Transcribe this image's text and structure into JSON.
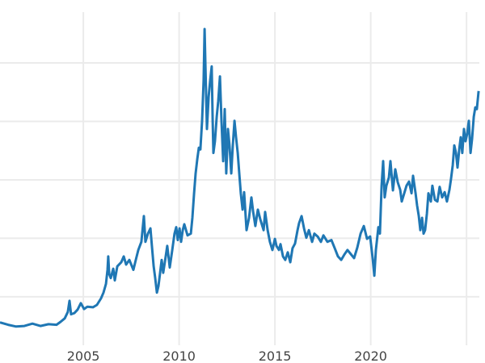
{
  "chart_data": {
    "type": "line",
    "title": "",
    "xlabel": "",
    "ylabel": "",
    "xlim": [
      2000.65,
      2025.67
    ],
    "ylim": [
      1.7,
      58.7
    ],
    "x_ticks": [
      2005,
      2010,
      2015,
      2020,
      2025
    ],
    "x_tick_labels": [
      "2005",
      "2010",
      "2015",
      "2020",
      ""
    ],
    "y_gridlines": [
      10,
      20,
      30,
      40,
      50
    ],
    "grid": true,
    "line_color": "#1f77b4",
    "grid_color": "#ebebeb",
    "series": [
      {
        "x": [
          2000.65,
          2001.07,
          2001.49,
          2001.92,
          2002.34,
          2002.76,
          2003.18,
          2003.6,
          2003.81,
          2004.03,
          2004.19,
          2004.28,
          2004.36,
          2004.53,
          2004.7,
          2004.87,
          2005.04,
          2005.21,
          2005.5,
          2005.71,
          2005.92,
          2006.05,
          2006.18,
          2006.26,
          2006.3,
          2006.35,
          2006.43,
          2006.56,
          2006.64,
          2006.77,
          2006.98,
          2007.11,
          2007.23,
          2007.4,
          2007.61,
          2007.74,
          2007.87,
          2008.03,
          2008.16,
          2008.24,
          2008.37,
          2008.5,
          2008.58,
          2008.67,
          2008.75,
          2008.84,
          2008.92,
          2009.0,
          2009.09,
          2009.17,
          2009.3,
          2009.38,
          2009.51,
          2009.64,
          2009.76,
          2009.85,
          2009.93,
          2010.02,
          2010.1,
          2010.19,
          2010.27,
          2010.44,
          2010.61,
          2010.69,
          2010.78,
          2010.86,
          2010.95,
          2011.03,
          2011.11,
          2011.2,
          2011.28,
          2011.33,
          2011.37,
          2011.45,
          2011.54,
          2011.62,
          2011.7,
          2011.75,
          2011.79,
          2011.87,
          2011.96,
          2012.04,
          2012.13,
          2012.21,
          2012.3,
          2012.38,
          2012.46,
          2012.55,
          2012.63,
          2012.72,
          2012.8,
          2012.89,
          2012.97,
          2013.06,
          2013.14,
          2013.22,
          2013.31,
          2013.39,
          2013.52,
          2013.65,
          2013.77,
          2013.86,
          2013.98,
          2014.11,
          2014.24,
          2014.41,
          2014.49,
          2014.62,
          2014.74,
          2014.87,
          2015.0,
          2015.08,
          2015.21,
          2015.29,
          2015.42,
          2015.54,
          2015.67,
          2015.8,
          2015.92,
          2016.05,
          2016.18,
          2016.26,
          2016.39,
          2016.52,
          2016.64,
          2016.77,
          2016.94,
          2017.06,
          2017.23,
          2017.4,
          2017.53,
          2017.74,
          2017.95,
          2018.12,
          2018.29,
          2018.46,
          2018.62,
          2018.79,
          2018.96,
          2019.13,
          2019.3,
          2019.47,
          2019.64,
          2019.81,
          2019.97,
          2020.1,
          2020.19,
          2020.27,
          2020.4,
          2020.48,
          2020.57,
          2020.65,
          2020.73,
          2020.82,
          2020.95,
          2021.03,
          2021.16,
          2021.28,
          2021.41,
          2021.54,
          2021.62,
          2021.75,
          2021.87,
          2022.0,
          2022.13,
          2022.21,
          2022.34,
          2022.42,
          2022.51,
          2022.59,
          2022.68,
          2022.76,
          2022.84,
          2022.93,
          2023.01,
          2023.14,
          2023.22,
          2023.35,
          2023.48,
          2023.6,
          2023.73,
          2023.86,
          2023.98,
          2024.11,
          2024.19,
          2024.28,
          2024.36,
          2024.45,
          2024.53,
          2024.62,
          2024.7,
          2024.78,
          2024.87,
          2024.95,
          2025.04,
          2025.12,
          2025.21,
          2025.29,
          2025.38,
          2025.46,
          2025.54,
          2025.63
        ],
        "y": [
          5.6,
          5.2,
          4.9,
          5.0,
          5.4,
          5.0,
          5.3,
          5.2,
          5.7,
          6.3,
          7.4,
          9.3,
          7.0,
          7.2,
          7.8,
          8.9,
          7.9,
          8.3,
          8.2,
          8.6,
          9.7,
          10.7,
          12.2,
          14.6,
          16.9,
          13.9,
          13.2,
          14.8,
          12.8,
          15.2,
          15.9,
          16.9,
          15.5,
          16.3,
          14.6,
          16.3,
          18.0,
          19.4,
          23.8,
          19.4,
          20.8,
          21.7,
          18.7,
          15.2,
          13.2,
          10.7,
          11.8,
          13.9,
          16.3,
          14.1,
          16.9,
          18.7,
          15.0,
          18.0,
          20.8,
          21.9,
          19.7,
          21.7,
          19.4,
          21.4,
          22.4,
          20.5,
          20.8,
          23.5,
          27.7,
          31.1,
          33.6,
          35.5,
          35.2,
          40.1,
          47.0,
          55.8,
          49.7,
          38.7,
          44.2,
          47.0,
          49.4,
          40.1,
          34.6,
          36.6,
          40.8,
          43.5,
          47.7,
          40.1,
          33.2,
          42.1,
          31.1,
          38.7,
          35.9,
          31.1,
          35.9,
          40.1,
          37.3,
          34.6,
          31.1,
          27.7,
          24.9,
          27.9,
          21.4,
          23.5,
          27.0,
          24.6,
          22.1,
          24.9,
          23.2,
          21.4,
          24.5,
          21.4,
          19.4,
          18.0,
          19.9,
          18.7,
          18.0,
          19.0,
          16.9,
          16.3,
          17.6,
          15.9,
          18.3,
          19.1,
          21.4,
          22.6,
          23.8,
          21.7,
          20.1,
          21.4,
          19.4,
          20.8,
          20.3,
          19.4,
          20.5,
          19.4,
          19.7,
          18.3,
          16.9,
          16.3,
          17.2,
          18.0,
          17.3,
          16.6,
          18.4,
          20.8,
          22.1,
          19.9,
          20.3,
          16.6,
          13.6,
          18.0,
          21.9,
          20.8,
          29.0,
          33.2,
          27.0,
          29.0,
          30.4,
          33.2,
          28.2,
          31.8,
          29.6,
          28.3,
          26.3,
          27.7,
          29.0,
          29.7,
          27.7,
          30.7,
          27.7,
          25.6,
          23.8,
          21.4,
          23.5,
          20.8,
          21.4,
          24.2,
          27.7,
          26.3,
          29.0,
          26.6,
          26.3,
          28.8,
          27.0,
          27.9,
          26.3,
          28.3,
          30.1,
          32.5,
          35.9,
          34.6,
          32.1,
          35.2,
          37.3,
          34.6,
          38.7,
          36.6,
          38.0,
          40.1,
          34.6,
          37.0,
          40.8,
          42.4,
          42.1,
          45.2
        ]
      }
    ]
  }
}
